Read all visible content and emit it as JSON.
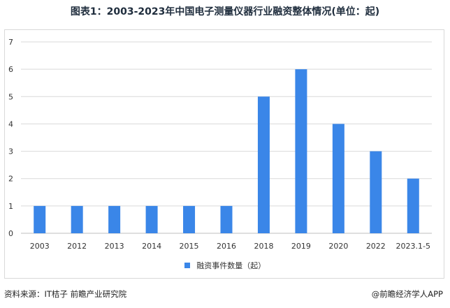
{
  "title": "图表1：2003-2023年中国电子测量仪器行业融资整体情况(单位：起)",
  "chart_data": {
    "type": "bar",
    "categories": [
      "2003",
      "2012",
      "2013",
      "2014",
      "2015",
      "2016",
      "2018",
      "2019",
      "2020",
      "2022",
      "2023.1-5"
    ],
    "series": [
      {
        "name": "融资事件数量（起）",
        "values": [
          1,
          1,
          1,
          1,
          1,
          1,
          5,
          6,
          4,
          3,
          2
        ]
      }
    ],
    "ylim": [
      0,
      7
    ],
    "yticks": [
      0,
      1,
      2,
      3,
      4,
      5,
      6,
      7
    ],
    "grid": true,
    "legend_position": "bottom",
    "bar_color": "#3a86e8"
  },
  "footer": {
    "source": "资料来源：IT桔子 前瞻产业研究院",
    "brand": "@前瞻经济学人APP"
  }
}
